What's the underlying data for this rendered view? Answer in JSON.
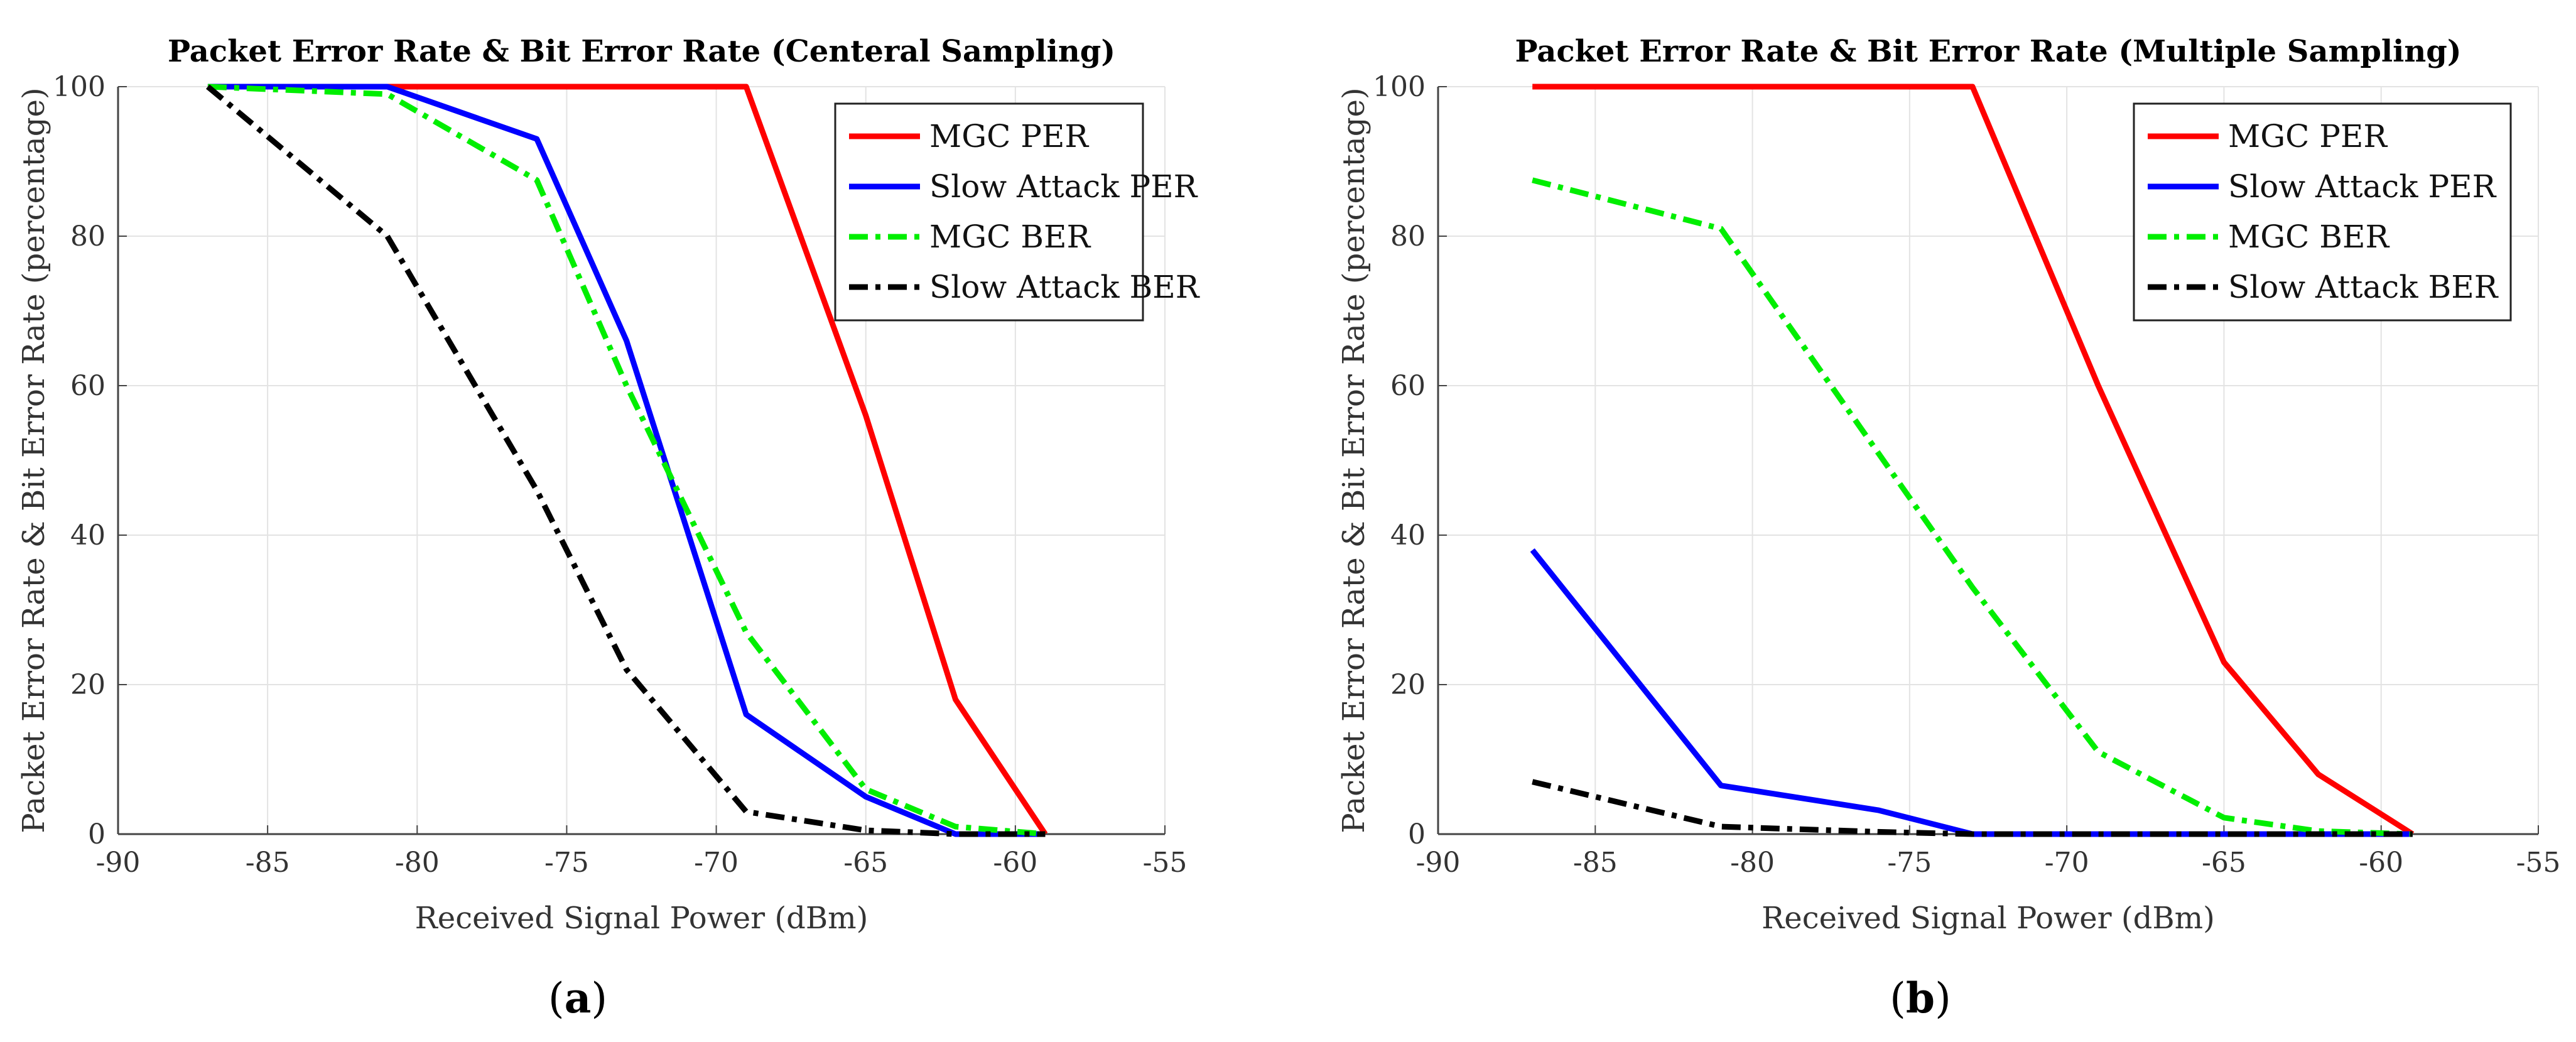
{
  "chart_data": [
    {
      "type": "line",
      "panel_label": "(a)",
      "title": "Packet Error Rate & Bit Error Rate (Centeral Sampling)",
      "xlabel": "Received Signal Power (dBm)",
      "ylabel": "Packet Error Rate & Bit Error Rate (percentage)",
      "xlim": [
        -90,
        -55
      ],
      "ylim": [
        0,
        100
      ],
      "xticks": [
        -90,
        -85,
        -80,
        -75,
        -70,
        -65,
        -60,
        -55
      ],
      "yticks": [
        0,
        20,
        40,
        60,
        80,
        100
      ],
      "grid": true,
      "legend_position": "top-right",
      "series": [
        {
          "name": "MGC PER",
          "color": "#ff0000",
          "dash": "solid",
          "x": [
            -87,
            -81,
            -76,
            -73,
            -69,
            -65,
            -62,
            -59
          ],
          "values": [
            100,
            100,
            100,
            100,
            100,
            56,
            18,
            0
          ]
        },
        {
          "name": "Slow Attack PER",
          "color": "#0000ff",
          "dash": "solid",
          "x": [
            -87,
            -81,
            -76,
            -73,
            -69,
            -65,
            -62,
            -59
          ],
          "values": [
            100,
            100,
            93,
            66,
            16,
            5,
            0,
            0
          ]
        },
        {
          "name": "MGC BER",
          "color": "#00ee00",
          "dash": "dashdot",
          "x": [
            -87,
            -81,
            -76,
            -73,
            -69,
            -65,
            -62,
            -59
          ],
          "values": [
            100,
            99,
            87.5,
            60,
            27,
            6,
            1,
            0
          ]
        },
        {
          "name": "Slow Attack BER",
          "color": "#000000",
          "dash": "dashdot",
          "x": [
            -87,
            -81,
            -76,
            -73,
            -69,
            -65,
            -62,
            -59
          ],
          "values": [
            100,
            80,
            46,
            22,
            3,
            0.5,
            0,
            0
          ]
        }
      ]
    },
    {
      "type": "line",
      "panel_label": "(b)",
      "title": "Packet Error Rate & Bit Error Rate (Multiple Sampling)",
      "xlabel": "Received Signal Power (dBm)",
      "ylabel": "Packet Error Rate & Bit Error Rate (percentage)",
      "xlim": [
        -90,
        -55
      ],
      "ylim": [
        0,
        100
      ],
      "xticks": [
        -90,
        -85,
        -80,
        -75,
        -70,
        -65,
        -60,
        -55
      ],
      "yticks": [
        0,
        20,
        40,
        60,
        80,
        100
      ],
      "grid": true,
      "legend_position": "top-right",
      "series": [
        {
          "name": "MGC PER",
          "color": "#ff0000",
          "dash": "solid",
          "x": [
            -87,
            -81,
            -76,
            -73,
            -69,
            -65,
            -62,
            -59
          ],
          "values": [
            100,
            100,
            100,
            100,
            60,
            23,
            8,
            0
          ]
        },
        {
          "name": "Slow Attack PER",
          "color": "#0000ff",
          "dash": "solid",
          "x": [
            -87,
            -81,
            -76,
            -73,
            -69,
            -65,
            -62,
            -59
          ],
          "values": [
            38,
            6.5,
            3.2,
            0,
            0,
            0,
            0,
            0
          ]
        },
        {
          "name": "MGC BER",
          "color": "#00ee00",
          "dash": "dashdot",
          "x": [
            -87,
            -81,
            -76,
            -73,
            -69,
            -65,
            -62,
            -59
          ],
          "values": [
            87.5,
            81,
            51,
            33,
            11,
            2.2,
            0.4,
            0
          ]
        },
        {
          "name": "Slow Attack BER",
          "color": "#000000",
          "dash": "dashdot",
          "x": [
            -87,
            -81,
            -76,
            -73,
            -69,
            -65,
            -62,
            -59
          ],
          "values": [
            7,
            1,
            0.3,
            0,
            0,
            0,
            0,
            0
          ]
        }
      ]
    }
  ]
}
